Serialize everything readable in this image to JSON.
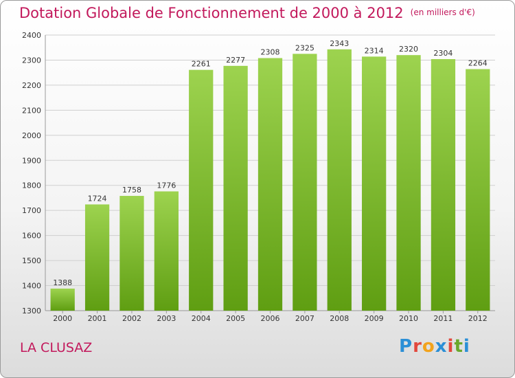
{
  "title": "Dotation Globale de Fonctionnement de 2000 à 2012",
  "unit_note": "(en milliers d'€)",
  "commune": "LA CLUSAZ",
  "logo": {
    "letters": [
      "P",
      "r",
      "o",
      "x",
      "i",
      "t",
      "i"
    ],
    "colors": [
      "#2b8fd6",
      "#e2483d",
      "#f2a31c",
      "#2b8fd6",
      "#e2483d",
      "#6aa82c",
      "#2b8fd6"
    ]
  },
  "colors": {
    "title": "#c2185b",
    "bar_top": "#9dd34f",
    "bar_bottom": "#5f9e12",
    "grid": "#cfcfcf",
    "axis_text": "#333333"
  },
  "chart_data": {
    "type": "bar",
    "title": "Dotation Globale de Fonctionnement de 2000 à 2012",
    "xlabel": "",
    "ylabel": "",
    "categories": [
      "2000",
      "2001",
      "2002",
      "2003",
      "2004",
      "2005",
      "2006",
      "2007",
      "2008",
      "2009",
      "2010",
      "2011",
      "2012"
    ],
    "values": [
      1388,
      1724,
      1758,
      1776,
      2261,
      2277,
      2308,
      2325,
      2343,
      2314,
      2320,
      2304,
      2264
    ],
    "ylim": [
      1300,
      2400
    ],
    "yticks": [
      1300,
      1400,
      1500,
      1600,
      1700,
      1800,
      1900,
      2000,
      2100,
      2200,
      2300,
      2400
    ],
    "grid": true,
    "data_labels": true
  }
}
